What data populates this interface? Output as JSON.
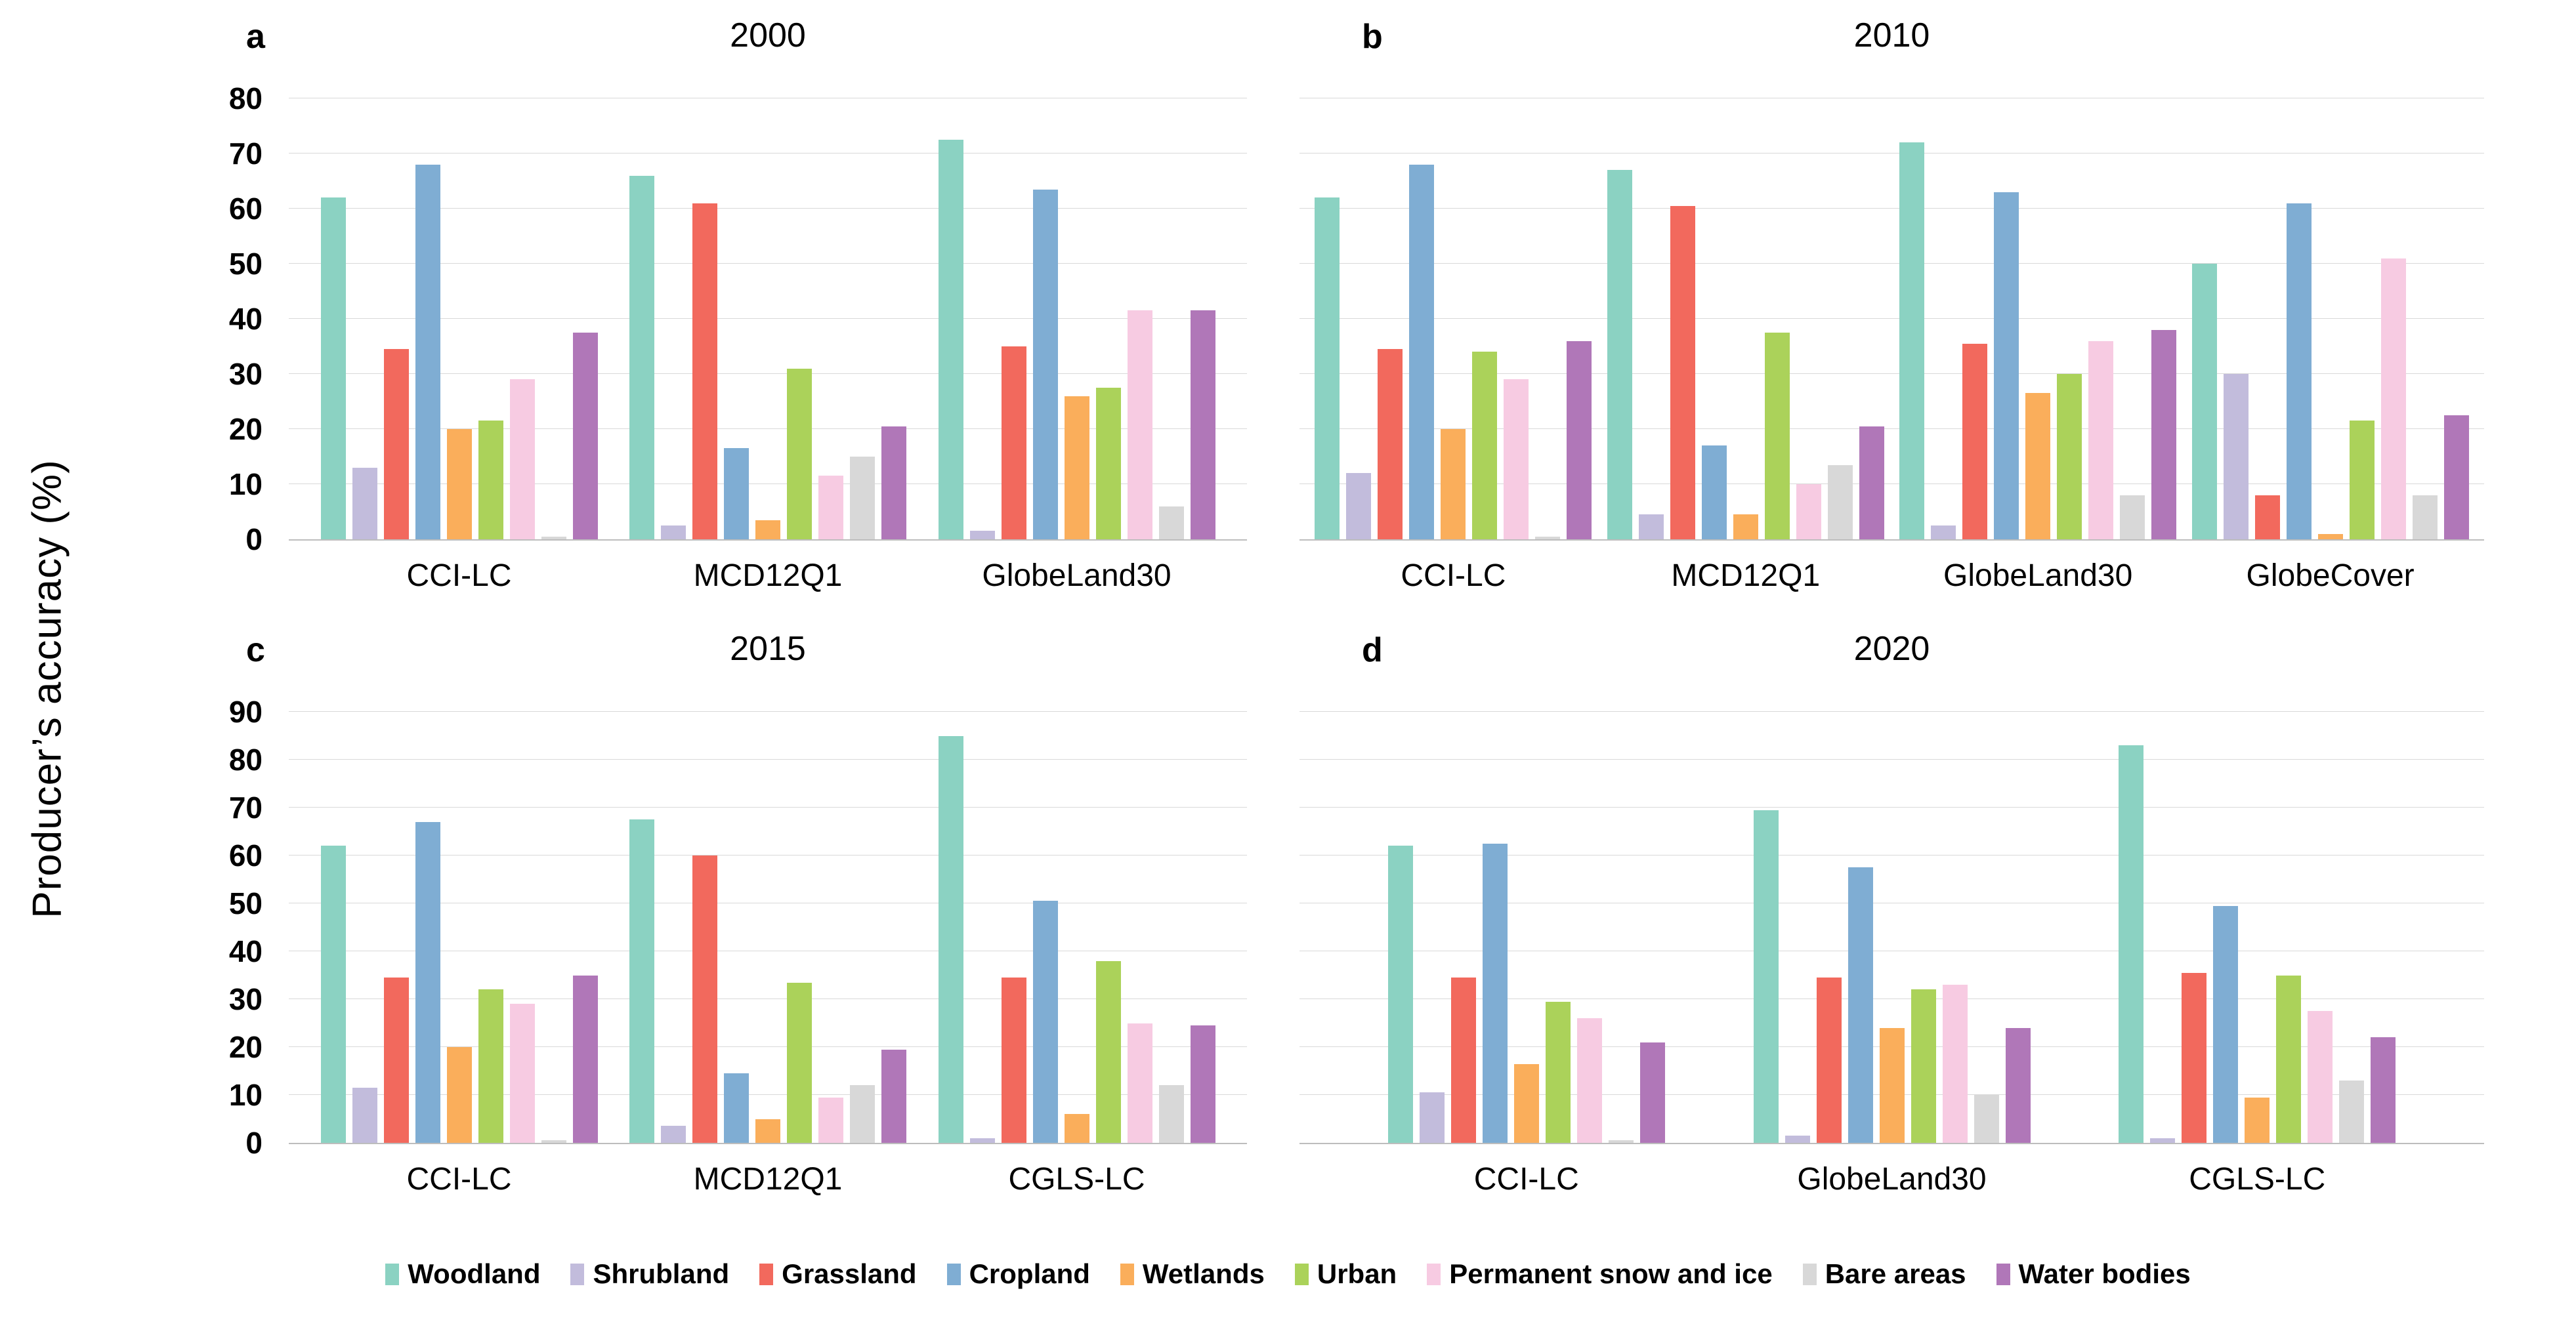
{
  "figure": {
    "y_axis_label": "Producer’s accuracy (%)",
    "legend": {
      "items": [
        {
          "label": "Woodland",
          "color": "#8BD2C2"
        },
        {
          "label": "Shrubland",
          "color": "#C2BCDC"
        },
        {
          "label": "Grassland",
          "color": "#F2695D"
        },
        {
          "label": "Cropland",
          "color": "#7FADD3"
        },
        {
          "label": "Wetlands",
          "color": "#FAAE5B"
        },
        {
          "label": "Urban",
          "color": "#ABD25A"
        },
        {
          "label": "Permanent snow and ice",
          "color": "#F7CBE2"
        },
        {
          "label": "Bare areas",
          "color": "#D8D8D8"
        },
        {
          "label": "Water bodies",
          "color": "#B077B8"
        }
      ]
    }
  },
  "chart_data": [
    {
      "type": "bar",
      "panel": "a",
      "title": "2000",
      "ylabel": "Producer’s accuracy (%)",
      "ylim": [
        0,
        80
      ],
      "ytick_step": 10,
      "ytick_labels_visible": true,
      "grid": true,
      "legend_position": "bottom",
      "categories": [
        "CCI-LC",
        "MCD12Q1",
        "GlobeLand30"
      ],
      "series": [
        {
          "name": "Woodland",
          "values": [
            62,
            66,
            72.5
          ]
        },
        {
          "name": "Shrubland",
          "values": [
            13,
            2.5,
            1.5
          ]
        },
        {
          "name": "Grassland",
          "values": [
            34.5,
            61,
            35
          ]
        },
        {
          "name": "Cropland",
          "values": [
            68,
            16.5,
            63.5
          ]
        },
        {
          "name": "Wetlands",
          "values": [
            20,
            3.5,
            26
          ]
        },
        {
          "name": "Urban",
          "values": [
            21.5,
            31,
            27.5
          ]
        },
        {
          "name": "Permanent snow and ice",
          "values": [
            29,
            11.5,
            41.5
          ]
        },
        {
          "name": "Bare areas",
          "values": [
            0.5,
            15,
            6
          ]
        },
        {
          "name": "Water bodies",
          "values": [
            37.5,
            20.5,
            41.5
          ]
        }
      ]
    },
    {
      "type": "bar",
      "panel": "b",
      "title": "2010",
      "ylabel": "Producer’s accuracy (%)",
      "ylim": [
        0,
        80
      ],
      "ytick_step": 10,
      "ytick_labels_visible": false,
      "grid": true,
      "legend_position": "bottom",
      "categories": [
        "CCI-LC",
        "MCD12Q1",
        "GlobeLand30",
        "GlobeCover"
      ],
      "series": [
        {
          "name": "Woodland",
          "values": [
            62,
            67,
            72,
            50
          ]
        },
        {
          "name": "Shrubland",
          "values": [
            12,
            4.5,
            2.5,
            30
          ]
        },
        {
          "name": "Grassland",
          "values": [
            34.5,
            60.5,
            35.5,
            8
          ]
        },
        {
          "name": "Cropland",
          "values": [
            68,
            17,
            63,
            61
          ]
        },
        {
          "name": "Wetlands",
          "values": [
            20,
            4.5,
            26.5,
            1
          ]
        },
        {
          "name": "Urban",
          "values": [
            34,
            37.5,
            30,
            21.5
          ]
        },
        {
          "name": "Permanent snow and ice",
          "values": [
            29,
            10,
            36,
            51
          ]
        },
        {
          "name": "Bare areas",
          "values": [
            0.5,
            13.5,
            8,
            8
          ]
        },
        {
          "name": "Water bodies",
          "values": [
            36,
            20.5,
            38,
            22.5
          ]
        }
      ]
    },
    {
      "type": "bar",
      "panel": "c",
      "title": "2015",
      "ylabel": "Producer’s accuracy (%)",
      "ylim": [
        0,
        90
      ],
      "ytick_step": 10,
      "ytick_labels_visible": true,
      "grid": true,
      "legend_position": "bottom",
      "categories": [
        "CCI-LC",
        "MCD12Q1",
        "CGLS-LC"
      ],
      "series": [
        {
          "name": "Woodland",
          "values": [
            62,
            67.5,
            85
          ]
        },
        {
          "name": "Shrubland",
          "values": [
            11.5,
            3.5,
            1
          ]
        },
        {
          "name": "Grassland",
          "values": [
            34.5,
            60,
            34.5
          ]
        },
        {
          "name": "Cropland",
          "values": [
            67,
            14.5,
            50.5
          ]
        },
        {
          "name": "Wetlands",
          "values": [
            20,
            5,
            6
          ]
        },
        {
          "name": "Urban",
          "values": [
            32,
            33.5,
            38
          ]
        },
        {
          "name": "Permanent snow and ice",
          "values": [
            29,
            9.5,
            25
          ]
        },
        {
          "name": "Bare areas",
          "values": [
            0.5,
            12,
            12
          ]
        },
        {
          "name": "Water bodies",
          "values": [
            35,
            19.5,
            24.5
          ]
        }
      ]
    },
    {
      "type": "bar",
      "panel": "d",
      "title": "2020",
      "ylabel": "Producer’s accuracy (%)",
      "ylim": [
        0,
        90
      ],
      "ytick_step": 10,
      "ytick_labels_visible": false,
      "grid": true,
      "legend_position": "bottom",
      "categories": [
        "CCI-LC",
        "GlobeLand30",
        "CGLS-LC"
      ],
      "series": [
        {
          "name": "Woodland",
          "values": [
            62,
            69.5,
            83
          ]
        },
        {
          "name": "Shrubland",
          "values": [
            10.5,
            1.5,
            1
          ]
        },
        {
          "name": "Grassland",
          "values": [
            34.5,
            34.5,
            35.5
          ]
        },
        {
          "name": "Cropland",
          "values": [
            62.5,
            57.5,
            49.5
          ]
        },
        {
          "name": "Wetlands",
          "values": [
            16.5,
            24,
            9.5
          ]
        },
        {
          "name": "Urban",
          "values": [
            29.5,
            32,
            35
          ]
        },
        {
          "name": "Permanent snow and ice",
          "values": [
            26,
            33,
            27.5
          ]
        },
        {
          "name": "Bare areas",
          "values": [
            0.5,
            10,
            13
          ]
        },
        {
          "name": "Water bodies",
          "values": [
            21,
            24,
            22
          ]
        }
      ]
    }
  ]
}
